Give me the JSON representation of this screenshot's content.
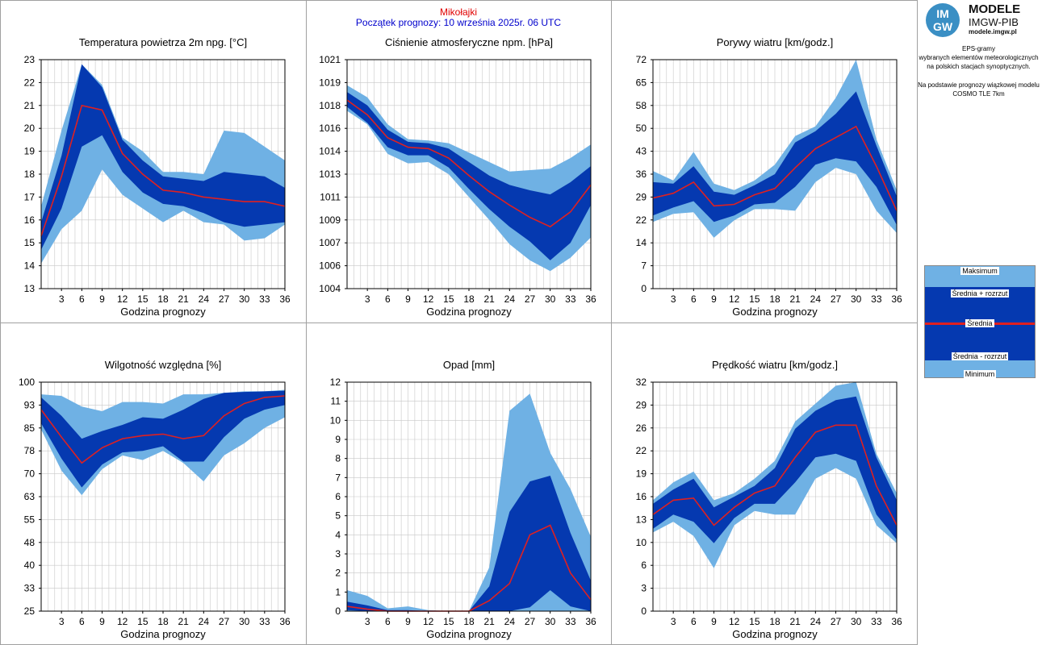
{
  "header": {
    "station": "Mikołajki",
    "start": "Początek prognozy: 10 września 2025r. 06 UTC"
  },
  "logo": {
    "mark_top": "IM",
    "mark_bottom": "GW",
    "name": "MODELE",
    "org": "IMGW-PIB",
    "url": "modele.imgw.pl"
  },
  "side_info": {
    "line1": "EPS-gramy",
    "line2": "wybranych elementów meteorologicznych",
    "line3": "na polskich stacjach  synoptycznych.",
    "line4": "Na podstawie prognozy wiązkowej modelu",
    "line5": "COSMO TLE 7km"
  },
  "legend": {
    "max": "Maksimum",
    "mean_plus": "Średnia + rozrzut",
    "mean": "Średnia",
    "mean_minus": "Średnia - rozrzut",
    "min": "Minimum"
  },
  "colors": {
    "outer_band": "#6fb1e4",
    "inner_band": "#0539b0",
    "mean_line": "#e02020",
    "grid": "#c8c8c8",
    "station_title": "#e00000",
    "start_title": "#0000cc"
  },
  "chart_data": [
    {
      "type": "area",
      "title": "Temperatura powietrza 2m npg. [°C]",
      "xlabel": "Godzina prognozy",
      "x": [
        0,
        3,
        6,
        9,
        12,
        15,
        18,
        21,
        24,
        27,
        30,
        33,
        36
      ],
      "xticks": [
        "3",
        "6",
        "9",
        "12",
        "15",
        "18",
        "21",
        "24",
        "27",
        "30",
        "33",
        "36"
      ],
      "ylim": [
        13,
        23
      ],
      "yticks": [
        "13",
        "14",
        "15",
        "16",
        "17",
        "18",
        "19",
        "20",
        "21",
        "22",
        "23"
      ],
      "series": [
        {
          "name": "Maksimum",
          "values": [
            16.6,
            19.9,
            22.8,
            21.9,
            19.6,
            19.0,
            18.1,
            18.1,
            18.0,
            19.9,
            19.8,
            19.2,
            18.6
          ]
        },
        {
          "name": "Średnia + rozrzut",
          "values": [
            15.9,
            18.8,
            22.8,
            21.8,
            19.5,
            18.6,
            17.9,
            17.8,
            17.7,
            18.1,
            18.0,
            17.9,
            17.4
          ]
        },
        {
          "name": "Średnia",
          "values": [
            15.3,
            17.9,
            21.0,
            20.8,
            18.9,
            18.0,
            17.3,
            17.2,
            17.0,
            16.9,
            16.8,
            16.8,
            16.6
          ]
        },
        {
          "name": "Średnia - rozrzut",
          "values": [
            14.7,
            16.5,
            19.2,
            19.7,
            18.1,
            17.2,
            16.7,
            16.6,
            16.3,
            15.9,
            15.7,
            15.8,
            15.9
          ]
        },
        {
          "name": "Minimum",
          "values": [
            14.1,
            15.6,
            16.4,
            18.2,
            17.1,
            16.5,
            15.9,
            16.4,
            15.9,
            15.8,
            15.1,
            15.2,
            15.8
          ]
        }
      ]
    },
    {
      "type": "area",
      "title": "Ciśnienie atmosferyczne npm. [hPa]",
      "xlabel": "Godzina prognozy",
      "x": [
        0,
        3,
        6,
        9,
        12,
        15,
        18,
        21,
        24,
        27,
        30,
        33,
        36
      ],
      "xticks": [
        "3",
        "6",
        "9",
        "12",
        "15",
        "18",
        "21",
        "24",
        "27",
        "30",
        "33",
        "36"
      ],
      "ylim": [
        1004,
        1021
      ],
      "ytick_values": [
        1004,
        1005.7,
        1007.4,
        1009.1,
        1010.8,
        1012.5,
        1014.2,
        1015.9,
        1017.6,
        1019.3,
        1021
      ],
      "yticks": [
        "1004",
        "1006",
        "1007",
        "1009",
        "1011",
        "1013",
        "1014",
        "1016",
        "1018",
        "1019",
        "1021"
      ],
      "series": [
        {
          "name": "Maksimum",
          "values": [
            1019.1,
            1018.2,
            1016.2,
            1015.1,
            1015.0,
            1014.8,
            1014.1,
            1013.4,
            1012.7,
            1012.8,
            1012.9,
            1013.7,
            1014.7
          ]
        },
        {
          "name": "Średnia + rozrzut",
          "values": [
            1018.6,
            1017.6,
            1015.8,
            1014.9,
            1014.8,
            1014.4,
            1013.4,
            1012.4,
            1011.7,
            1011.3,
            1011.0,
            1011.9,
            1013.1
          ]
        },
        {
          "name": "Średnia",
          "values": [
            1018.0,
            1016.9,
            1015.2,
            1014.5,
            1014.4,
            1013.7,
            1012.4,
            1011.2,
            1010.2,
            1009.3,
            1008.6,
            1009.7,
            1011.7
          ]
        },
        {
          "name": "Średnia - rozrzut",
          "values": [
            1017.5,
            1016.3,
            1014.5,
            1013.9,
            1013.9,
            1013.0,
            1011.4,
            1009.9,
            1008.6,
            1007.5,
            1006.1,
            1007.4,
            1010.2
          ]
        },
        {
          "name": "Minimum",
          "values": [
            1017.2,
            1016.2,
            1014.0,
            1013.3,
            1013.4,
            1012.5,
            1010.8,
            1009.1,
            1007.3,
            1006.1,
            1005.3,
            1006.3,
            1007.8
          ]
        }
      ]
    },
    {
      "type": "area",
      "title": "Porywy wiatru [km/godz.]",
      "xlabel": "Godzina prognozy",
      "x": [
        0,
        3,
        6,
        9,
        12,
        15,
        18,
        21,
        24,
        27,
        30,
        33,
        36
      ],
      "xticks": [
        "3",
        "6",
        "9",
        "12",
        "15",
        "18",
        "21",
        "24",
        "27",
        "30",
        "33",
        "36"
      ],
      "ylim": [
        0,
        72
      ],
      "ytick_values": [
        0,
        7.2,
        14.4,
        21.6,
        28.8,
        36,
        43.2,
        50.4,
        57.6,
        64.8,
        72
      ],
      "yticks": [
        "0",
        "7",
        "14",
        "22",
        "29",
        "36",
        "43",
        "50",
        "58",
        "65",
        "72"
      ],
      "series": [
        {
          "name": "Maksimum",
          "values": [
            37.0,
            34.0,
            43.0,
            33.0,
            31.0,
            34.0,
            39.0,
            48.0,
            51.0,
            60.0,
            72.0,
            47.0,
            31.0
          ]
        },
        {
          "name": "Średnia + rozrzut",
          "values": [
            33.5,
            33.0,
            38.5,
            30.5,
            29.5,
            32.5,
            36.0,
            46.0,
            49.5,
            55.0,
            62.0,
            45.0,
            29.0
          ]
        },
        {
          "name": "Średnia",
          "values": [
            28.5,
            30.0,
            33.5,
            26.0,
            26.5,
            29.5,
            31.5,
            38.0,
            44.0,
            47.5,
            51.0,
            38.5,
            24.5
          ]
        },
        {
          "name": "Średnia - rozrzut",
          "values": [
            23.0,
            25.5,
            27.5,
            21.0,
            23.0,
            26.5,
            27.0,
            32.0,
            39.0,
            41.0,
            40.0,
            32.0,
            20.0
          ]
        },
        {
          "name": "Minimum",
          "values": [
            21.0,
            23.5,
            24.0,
            16.0,
            21.5,
            25.0,
            25.0,
            24.5,
            33.5,
            38.0,
            36.0,
            24.5,
            17.5
          ]
        }
      ]
    },
    {
      "type": "area",
      "title": "Wilgotność względna [%]",
      "xlabel": "Godzina prognozy",
      "x": [
        0,
        3,
        6,
        9,
        12,
        15,
        18,
        21,
        24,
        27,
        30,
        33,
        36
      ],
      "xticks": [
        "3",
        "6",
        "9",
        "12",
        "15",
        "18",
        "21",
        "24",
        "27",
        "30",
        "33",
        "36"
      ],
      "ylim": [
        25,
        100
      ],
      "ytick_values": [
        25,
        32.5,
        40,
        47.5,
        55,
        62.5,
        70,
        77.5,
        85,
        92.5,
        100
      ],
      "yticks": [
        "25",
        "33",
        "40",
        "48",
        "55",
        "63",
        "70",
        "78",
        "85",
        "93",
        "100"
      ],
      "series": [
        {
          "name": "Maksimum",
          "values": [
            96.0,
            95.5,
            92.0,
            90.5,
            93.5,
            93.5,
            93.0,
            96.0,
            96.0,
            96.5,
            97.0,
            97.0,
            97.5
          ]
        },
        {
          "name": "Średnia + rozrzut",
          "values": [
            95.0,
            89.0,
            81.5,
            84.0,
            86.0,
            88.5,
            88.0,
            91.0,
            94.5,
            96.5,
            96.8,
            97.0,
            97.2
          ]
        },
        {
          "name": "Średnia",
          "values": [
            91.0,
            82.0,
            73.5,
            78.5,
            81.5,
            82.5,
            83.0,
            81.5,
            82.5,
            89.0,
            93.0,
            95.0,
            95.5
          ]
        },
        {
          "name": "Średnia - rozrzut",
          "values": [
            86.5,
            75.0,
            65.5,
            73.0,
            77.0,
            77.5,
            79.0,
            74.0,
            74.0,
            82.0,
            88.0,
            91.0,
            92.5
          ]
        },
        {
          "name": "Minimum",
          "values": [
            84.5,
            71.0,
            63.0,
            71.5,
            76.0,
            74.5,
            77.5,
            73.5,
            67.5,
            76.0,
            80.0,
            85.0,
            88.5
          ]
        }
      ]
    },
    {
      "type": "area",
      "title": "Opad [mm]",
      "xlabel": "Godzina prognozy",
      "x": [
        0,
        3,
        6,
        9,
        12,
        15,
        18,
        21,
        24,
        27,
        30,
        33,
        36
      ],
      "xticks": [
        "3",
        "6",
        "9",
        "12",
        "15",
        "18",
        "21",
        "24",
        "27",
        "30",
        "33",
        "36"
      ],
      "ylim": [
        0,
        12
      ],
      "yticks": [
        "0",
        "1",
        "2",
        "3",
        "4",
        "5",
        "6",
        "7",
        "8",
        "9",
        "10",
        "11",
        "12"
      ],
      "series": [
        {
          "name": "Maksimum",
          "values": [
            1.1,
            0.8,
            0.15,
            0.25,
            0.05,
            0.0,
            0.0,
            2.3,
            10.5,
            11.4,
            8.3,
            6.4,
            3.9
          ]
        },
        {
          "name": "Średnia + rozrzut",
          "values": [
            0.5,
            0.3,
            0.05,
            0.05,
            0.0,
            0.0,
            0.0,
            1.3,
            5.2,
            6.8,
            7.1,
            4.1,
            1.6
          ]
        },
        {
          "name": "Średnia",
          "values": [
            0.25,
            0.1,
            0.0,
            0.0,
            0.0,
            0.0,
            0.0,
            0.55,
            1.45,
            4.0,
            4.5,
            2.0,
            0.6
          ]
        },
        {
          "name": "Średnia - rozrzut",
          "values": [
            0.05,
            0.0,
            0.0,
            0.0,
            0.0,
            0.0,
            0.0,
            0.0,
            0.0,
            0.2,
            1.1,
            0.25,
            0.0
          ]
        },
        {
          "name": "Minimum",
          "values": [
            0.0,
            0.0,
            0.0,
            0.0,
            0.0,
            0.0,
            0.0,
            0.0,
            0.0,
            0.0,
            0.0,
            0.0,
            0.0
          ]
        }
      ]
    },
    {
      "type": "area",
      "title": "Prędkość wiatru [km/godz.]",
      "xlabel": "Godzina prognozy",
      "x": [
        0,
        3,
        6,
        9,
        12,
        15,
        18,
        21,
        24,
        27,
        30,
        33,
        36
      ],
      "xticks": [
        "3",
        "6",
        "9",
        "12",
        "15",
        "18",
        "21",
        "24",
        "27",
        "30",
        "33",
        "36"
      ],
      "ylim": [
        0,
        32
      ],
      "ytick_values": [
        0,
        3.2,
        6.4,
        9.6,
        12.8,
        16,
        19.2,
        22.4,
        25.6,
        28.8,
        32
      ],
      "yticks": [
        "0",
        "3",
        "6",
        "10",
        "13",
        "16",
        "19",
        "22",
        "26",
        "29",
        "32"
      ],
      "series": [
        {
          "name": "Maksimum",
          "values": [
            15.5,
            18.0,
            19.5,
            15.5,
            16.5,
            18.5,
            21.0,
            26.5,
            29.0,
            31.5,
            32.0,
            22.0,
            16.5
          ]
        },
        {
          "name": "Średnia + rozrzut",
          "values": [
            15.0,
            17.0,
            18.5,
            14.5,
            16.0,
            17.5,
            20.0,
            25.5,
            28.0,
            29.5,
            30.0,
            21.5,
            15.5
          ]
        },
        {
          "name": "Średnia",
          "values": [
            13.5,
            15.5,
            15.8,
            12.0,
            14.5,
            16.5,
            17.5,
            21.5,
            25.0,
            26.0,
            26.0,
            17.5,
            12.0
          ]
        },
        {
          "name": "Średnia - rozrzut",
          "values": [
            11.5,
            13.5,
            12.5,
            9.5,
            13.0,
            15.0,
            15.0,
            18.0,
            21.5,
            22.0,
            21.0,
            13.5,
            10.0
          ]
        },
        {
          "name": "Minimum",
          "values": [
            11.0,
            12.5,
            10.5,
            6.0,
            12.0,
            14.0,
            13.5,
            13.5,
            18.5,
            20.0,
            18.5,
            12.0,
            9.5
          ]
        }
      ]
    }
  ]
}
